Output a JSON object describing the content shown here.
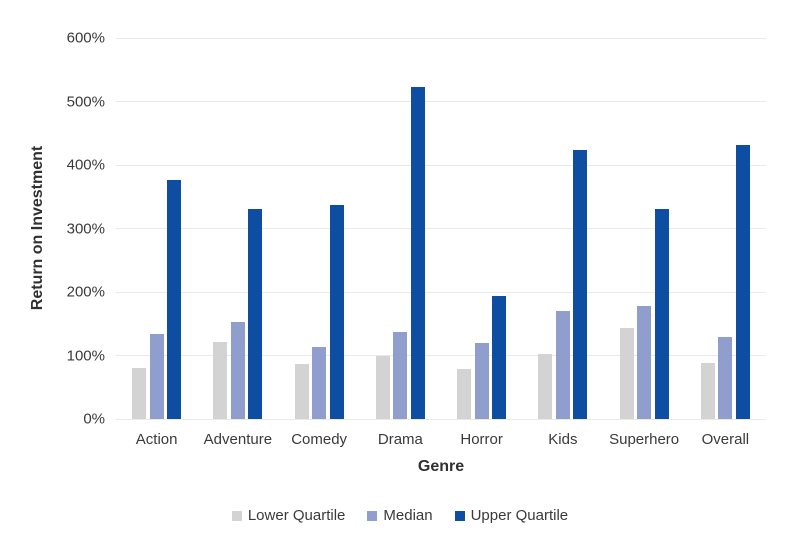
{
  "colors": {
    "background": "#ffffff",
    "gridline": "#e9e9e9",
    "text": "#3a3a3a",
    "lower_quartile": "#d3d3d3",
    "median": "#8f9ecd",
    "upper_quartile": "#0d4da2"
  },
  "chart_data": {
    "type": "bar",
    "title": "",
    "xlabel": "Genre",
    "ylabel": "Return on Investment",
    "categories": [
      "Action",
      "Adventure",
      "Comedy",
      "Drama",
      "Horror",
      "Kids",
      "Superhero",
      "Overall"
    ],
    "series": [
      {
        "name": "Lower Quartile",
        "color": "#d3d3d3",
        "values": [
          80,
          121,
          86,
          99,
          78,
          103,
          144,
          88
        ]
      },
      {
        "name": "Median",
        "color": "#8f9ecd",
        "values": [
          134,
          152,
          113,
          137,
          119,
          170,
          178,
          129
        ]
      },
      {
        "name": "Upper Quartile",
        "color": "#0d4da2",
        "values": [
          377,
          331,
          337,
          523,
          194,
          423,
          331,
          431
        ]
      }
    ],
    "ylim": [
      0,
      600
    ],
    "ytick_step": 100,
    "ytick_suffix": "%",
    "grid": true,
    "legend_position": "bottom"
  }
}
